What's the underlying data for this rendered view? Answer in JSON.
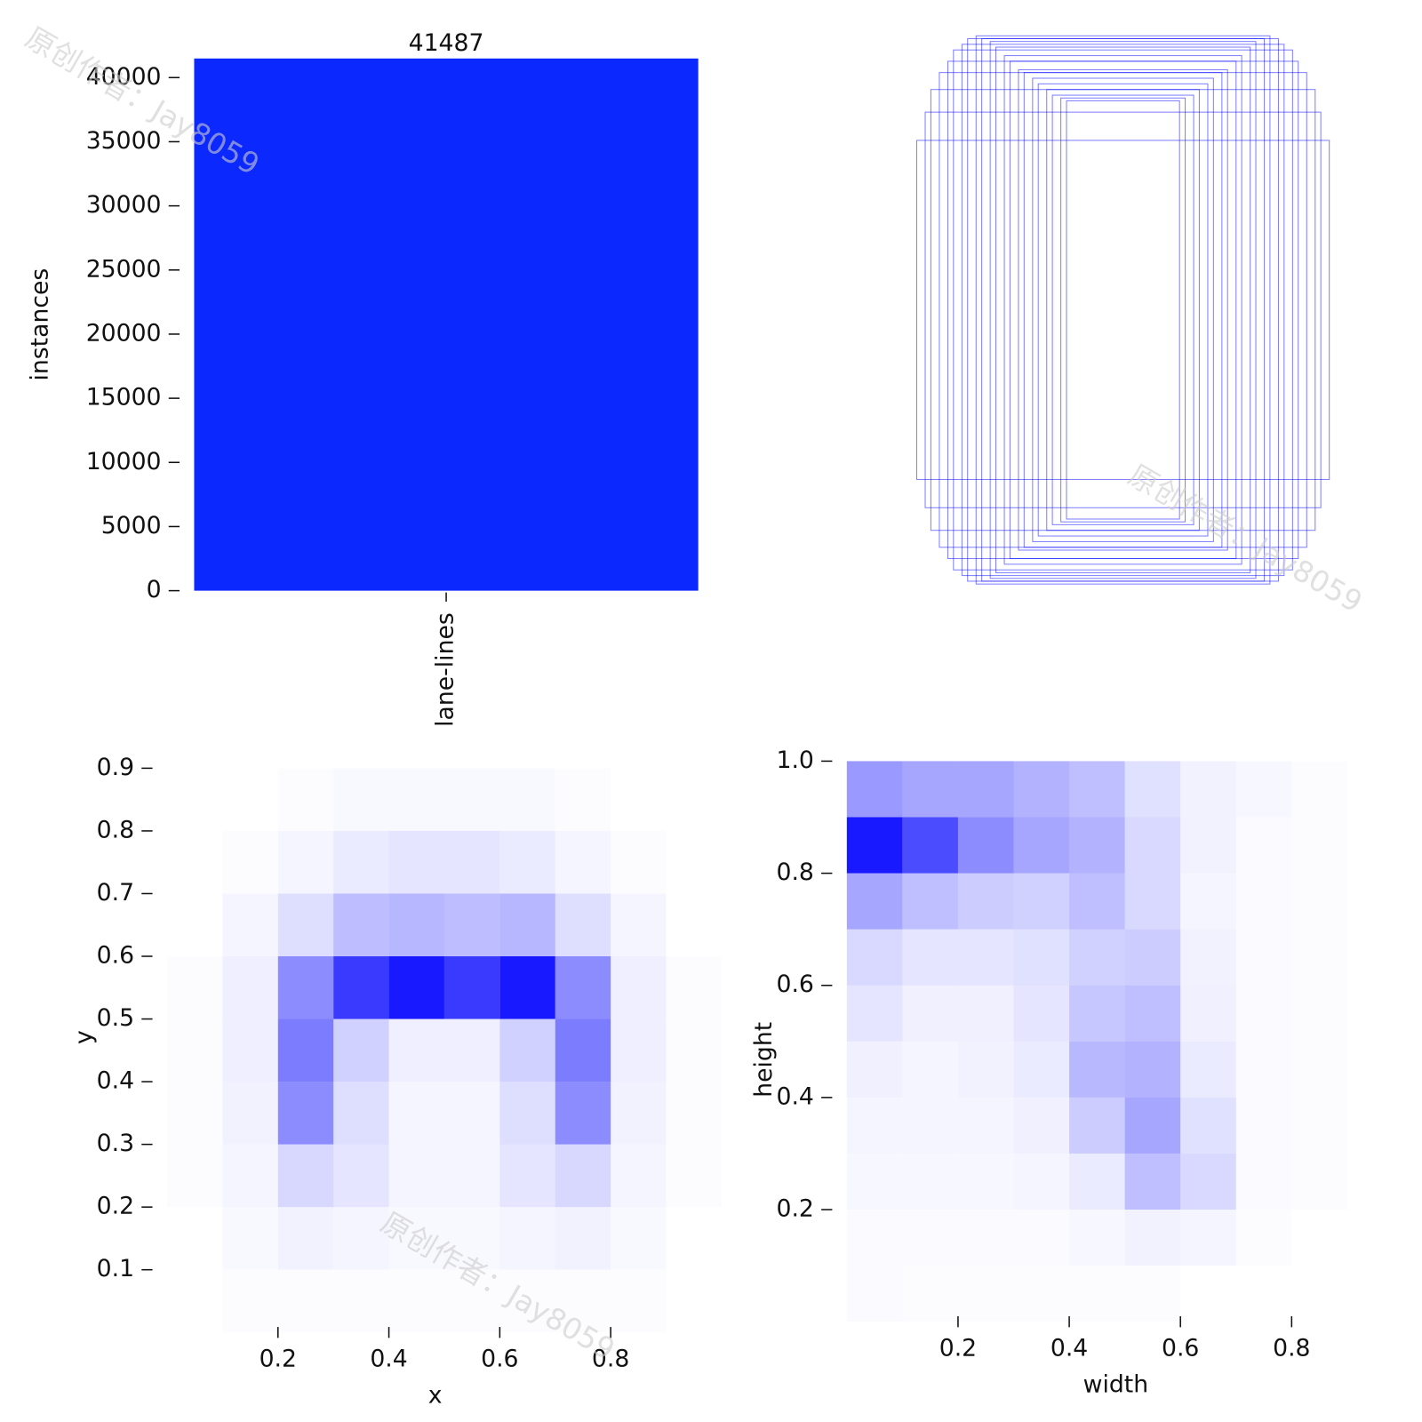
{
  "watermark": "原创作者：Jay8059",
  "chart_data": [
    {
      "type": "bar",
      "ylabel": "instances",
      "categories": [
        "lane-lines"
      ],
      "values": [
        41487
      ],
      "color": "#0b28ff",
      "ylim": [
        0,
        41500
      ],
      "yticks": [
        0,
        5000,
        10000,
        15000,
        20000,
        25000,
        30000,
        35000,
        40000
      ]
    },
    {
      "type": "boxes",
      "color": "#0000ff",
      "widths": [
        0.73,
        0.7,
        0.68,
        0.65,
        0.62,
        0.6,
        0.57,
        0.55,
        0.52,
        0.5,
        0.47,
        0.45,
        0.42,
        0.4,
        0.37,
        0.35,
        0.32,
        0.3,
        0.27,
        0.25,
        0.22,
        0.2
      ],
      "heights": [
        0.6,
        0.7,
        0.78,
        0.84,
        0.88,
        0.92,
        0.94,
        0.96,
        0.97,
        0.96,
        0.95,
        0.93,
        0.9,
        0.88,
        0.85,
        0.84,
        0.82,
        0.8,
        0.78,
        0.76,
        0.75,
        0.74
      ]
    },
    {
      "type": "heatmap",
      "xlabel": "x",
      "ylabel": "y",
      "color": "#0000ff",
      "xlim": [
        0,
        1
      ],
      "ylim": [
        0,
        1
      ],
      "xticks": [
        0.2,
        0.4,
        0.6,
        0.8
      ],
      "yticks": [
        0.1,
        0.2,
        0.3,
        0.4,
        0.5,
        0.6,
        0.7,
        0.8,
        0.9
      ],
      "xbins": [
        0,
        0.1,
        0.2,
        0.3,
        0.4,
        0.5,
        0.6,
        0.7,
        0.8,
        0.9,
        1
      ],
      "ybins": [
        0,
        0.1,
        0.2,
        0.3,
        0.4,
        0.5,
        0.6,
        0.7,
        0.8,
        0.9,
        1
      ],
      "z": [
        [
          0,
          1,
          1,
          1,
          1,
          1,
          1,
          1,
          1,
          0
        ],
        [
          0,
          2,
          4,
          3,
          2,
          2,
          3,
          4,
          2,
          0
        ],
        [
          1,
          3,
          12,
          8,
          3,
          3,
          8,
          12,
          3,
          1
        ],
        [
          1,
          4,
          35,
          10,
          3,
          3,
          10,
          35,
          4,
          1
        ],
        [
          1,
          5,
          40,
          14,
          5,
          5,
          14,
          40,
          5,
          1
        ],
        [
          1,
          5,
          35,
          60,
          70,
          60,
          70,
          35,
          5,
          1
        ],
        [
          0,
          3,
          10,
          20,
          22,
          20,
          22,
          10,
          3,
          0
        ],
        [
          0,
          1,
          3,
          6,
          8,
          8,
          6,
          3,
          1,
          0
        ],
        [
          0,
          0,
          1,
          2,
          2,
          2,
          2,
          1,
          0,
          0
        ],
        [
          0,
          0,
          0,
          0,
          0,
          0,
          0,
          0,
          0,
          0
        ]
      ]
    },
    {
      "type": "heatmap",
      "xlabel": "width",
      "ylabel": "height",
      "color": "#0000ff",
      "xlim": [
        0,
        1
      ],
      "ylim": [
        0,
        1
      ],
      "xticks": [
        0.2,
        0.4,
        0.6,
        0.8
      ],
      "yticks": [
        0.2,
        0.4,
        0.6,
        0.8,
        {
          "value": 1,
          "label": "1.0"
        }
      ],
      "xbins": [
        0,
        0.1,
        0.2,
        0.3,
        0.4,
        0.5,
        0.6,
        0.7,
        0.8,
        0.9,
        1
      ],
      "ybins": [
        0,
        0.1,
        0.2,
        0.3,
        0.4,
        0.5,
        0.6,
        0.7,
        0.8,
        0.9,
        1
      ],
      "z": [
        [
          2,
          1,
          1,
          1,
          1,
          1,
          0,
          0,
          0,
          0
        ],
        [
          2,
          2,
          2,
          2,
          3,
          5,
          4,
          1,
          0,
          0
        ],
        [
          3,
          3,
          3,
          4,
          8,
          25,
          15,
          2,
          1,
          0
        ],
        [
          4,
          4,
          4,
          6,
          20,
          35,
          12,
          2,
          1,
          0
        ],
        [
          6,
          4,
          5,
          8,
          28,
          30,
          8,
          2,
          1,
          0
        ],
        [
          10,
          6,
          6,
          10,
          22,
          25,
          6,
          2,
          1,
          0
        ],
        [
          15,
          10,
          10,
          12,
          18,
          20,
          5,
          2,
          1,
          0
        ],
        [
          35,
          25,
          20,
          18,
          25,
          15,
          4,
          2,
          1,
          0
        ],
        [
          90,
          70,
          45,
          35,
          30,
          15,
          5,
          2,
          1,
          0
        ],
        [
          40,
          35,
          35,
          30,
          25,
          12,
          5,
          3,
          1,
          0
        ]
      ]
    }
  ]
}
